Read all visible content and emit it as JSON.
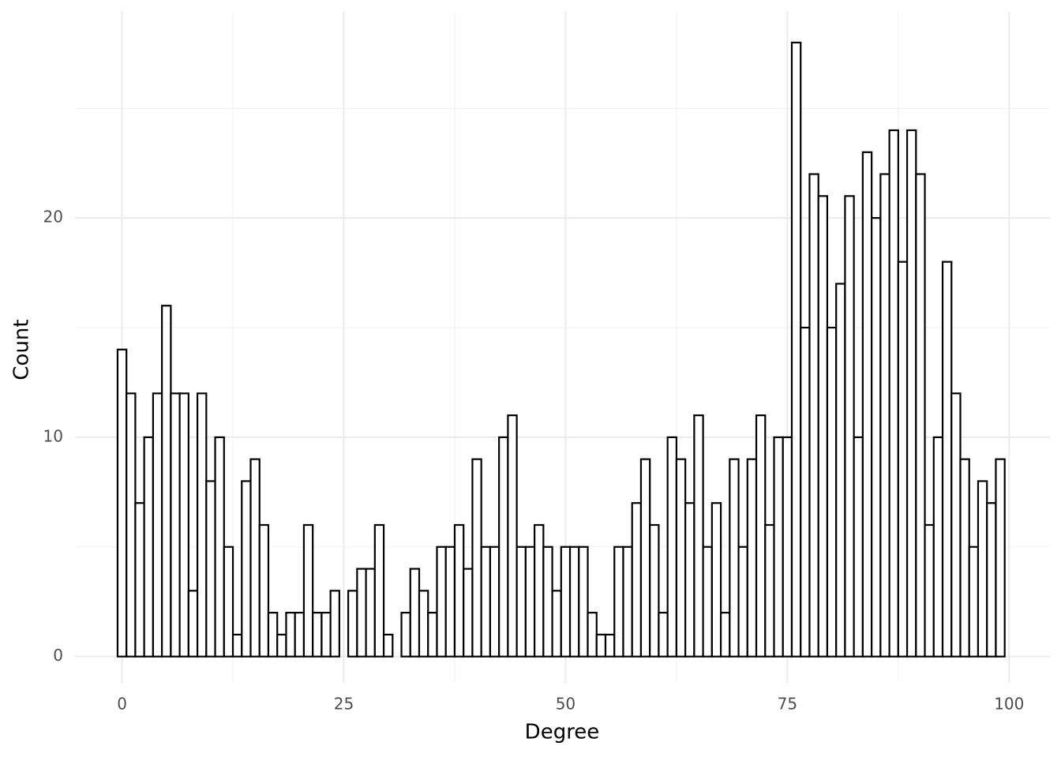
{
  "chart_data": {
    "type": "histogram",
    "x_label": "Degree",
    "y_label": "Count",
    "bins": [
      -0.5,
      0.5,
      1.5,
      2.5,
      3.5,
      4.5,
      5.5,
      6.5,
      7.5,
      8.5,
      9.5,
      10.5,
      11.5,
      12.5,
      13.5,
      14.5,
      15.5,
      16.5,
      17.5,
      18.5,
      19.5,
      20.5,
      21.5,
      22.5,
      23.5,
      24.5,
      25.5,
      26.5,
      27.5,
      28.5,
      29.5,
      30.5,
      31.5,
      32.5,
      33.5,
      34.5,
      35.5,
      36.5,
      37.5,
      38.5,
      39.5,
      40.5,
      41.5,
      42.5,
      43.5,
      44.5,
      45.5,
      46.5,
      47.5,
      48.5,
      49.5,
      50.5,
      51.5,
      52.5,
      53.5,
      54.5,
      55.5,
      56.5,
      57.5,
      58.5,
      59.5,
      60.5,
      61.5,
      62.5,
      63.5,
      64.5,
      65.5,
      66.5,
      67.5,
      68.5,
      69.5,
      70.5,
      71.5,
      72.5,
      73.5,
      74.5,
      75.5,
      76.5,
      77.5,
      78.5,
      79.5,
      80.5,
      81.5,
      82.5,
      83.5,
      84.5,
      85.5,
      86.5,
      87.5,
      88.5,
      89.5,
      90.5,
      91.5,
      92.5,
      93.5,
      94.5,
      95.5,
      96.5,
      97.5,
      98.5,
      99.5
    ],
    "values": [
      14,
      12,
      7,
      10,
      12,
      16,
      12,
      12,
      3,
      12,
      8,
      10,
      5,
      1,
      8,
      9,
      6,
      2,
      1,
      2,
      2,
      6,
      2,
      2,
      3,
      0,
      3,
      4,
      4,
      6,
      1,
      0,
      2,
      4,
      3,
      2,
      5,
      5,
      6,
      4,
      9,
      5,
      5,
      10,
      11,
      5,
      5,
      6,
      5,
      3,
      5,
      5,
      5,
      2,
      1,
      1,
      5,
      5,
      7,
      9,
      6,
      2,
      10,
      9,
      7,
      11,
      5,
      7,
      2,
      9,
      5,
      9,
      11,
      6,
      10,
      10,
      28,
      15,
      22,
      21,
      15,
      17,
      21,
      10,
      23,
      20,
      22,
      24,
      18,
      24,
      22,
      6,
      10,
      18,
      12,
      9,
      5,
      8,
      7,
      9
    ],
    "fill": "#ffffff",
    "outline": "#000000",
    "xlim": [
      -5.3,
      104.6
    ],
    "xticks": [
      0,
      25,
      50,
      75,
      100
    ],
    "ylim": [
      -1.2,
      29.4
    ],
    "yticks": [
      0,
      10,
      20
    ],
    "grid": true
  }
}
